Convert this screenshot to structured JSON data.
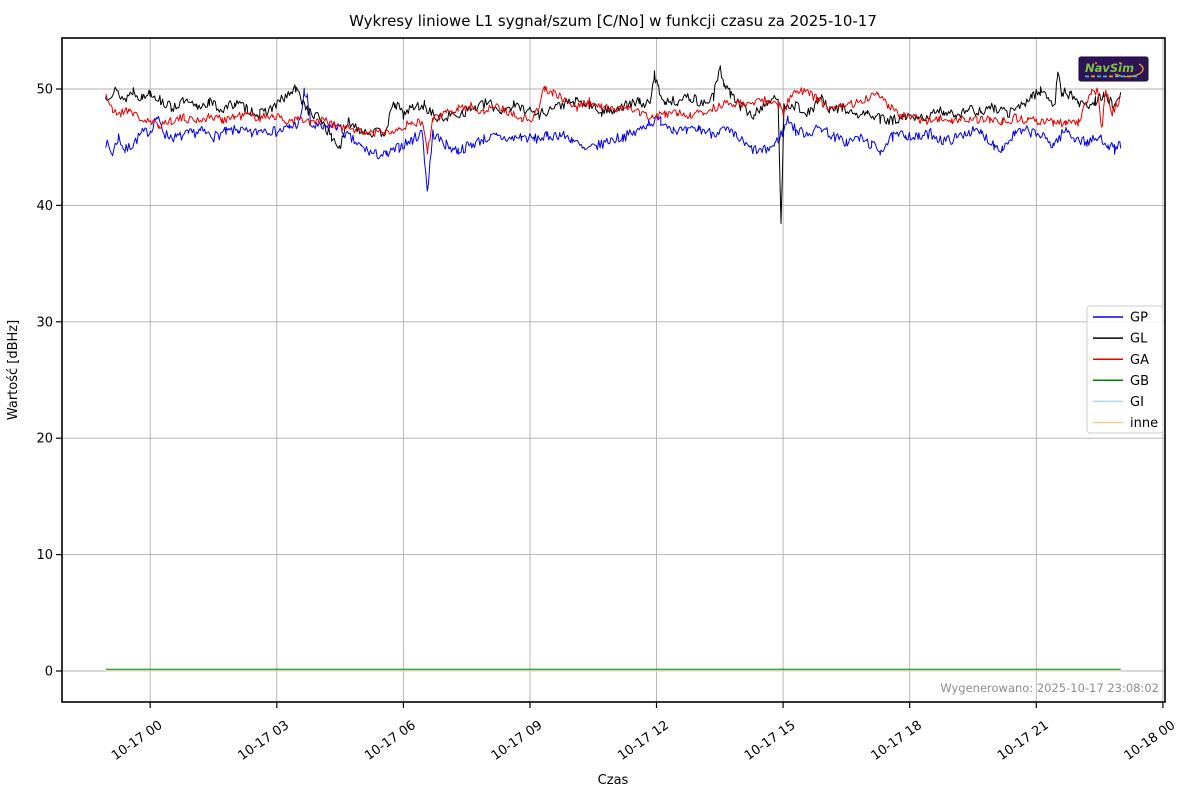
{
  "page": {
    "background": "#ffffff"
  },
  "footer": {
    "generated_text": "Wygenerowano: 2025-10-17 23:08:02"
  },
  "logo": {
    "text": "NavSim",
    "bg_color": "#2e1457",
    "text_color": "#7dc142",
    "swoosh_color": "#e8a01c"
  },
  "chart_data": {
    "type": "line",
    "title": "Wykresy liniowe L1 sygnał/szum [C/No] w funkcji czasu za 2025-10-17",
    "xlabel": "Czas",
    "ylabel": "Wartość [dBHz]",
    "grid": true,
    "legend_position": "center-right",
    "xlim": [
      -2.09,
      24.05
    ],
    "ylim": [
      -2.66,
      54.38
    ],
    "sample_step": 0.032,
    "x_ticks": [
      {
        "h": 0,
        "label": "10-17 00"
      },
      {
        "h": 3,
        "label": "10-17 03"
      },
      {
        "h": 6,
        "label": "10-17 06"
      },
      {
        "h": 9,
        "label": "10-17 09"
      },
      {
        "h": 12,
        "label": "10-17 12"
      },
      {
        "h": 15,
        "label": "10-17 15"
      },
      {
        "h": 18,
        "label": "10-17 18"
      },
      {
        "h": 21,
        "label": "10-17 21"
      },
      {
        "h": 24,
        "label": "10-18 00"
      }
    ],
    "y_ticks": [
      0,
      10,
      20,
      30,
      40,
      50
    ],
    "series": [
      {
        "name": "GP",
        "color": "#0000e6",
        "width": 1,
        "noise": 0.45,
        "seed": 7,
        "anchors": [
          [
            -1.05,
            45.4
          ],
          [
            -0.9,
            44.4
          ],
          [
            -0.75,
            45.9
          ],
          [
            -0.6,
            44.7
          ],
          [
            -0.4,
            45.3
          ],
          [
            -0.2,
            46.2
          ],
          [
            0.0,
            46.4
          ],
          [
            0.15,
            47.6
          ],
          [
            0.35,
            46.1
          ],
          [
            0.6,
            45.8
          ],
          [
            0.9,
            46.1
          ],
          [
            1.2,
            46.4
          ],
          [
            1.5,
            45.9
          ],
          [
            1.8,
            46.3
          ],
          [
            2.1,
            46.5
          ],
          [
            2.4,
            46.1
          ],
          [
            2.7,
            46.6
          ],
          [
            3.0,
            46.3
          ],
          [
            3.3,
            46.7
          ],
          [
            3.55,
            47.1
          ],
          [
            3.65,
            49.7
          ],
          [
            3.72,
            49.3
          ],
          [
            3.8,
            46.9
          ],
          [
            4.1,
            46.6
          ],
          [
            4.4,
            46.9
          ],
          [
            4.7,
            45.9
          ],
          [
            5.0,
            45.0
          ],
          [
            5.3,
            44.4
          ],
          [
            5.6,
            44.3
          ],
          [
            5.9,
            45.0
          ],
          [
            6.2,
            45.6
          ],
          [
            6.45,
            46.3
          ],
          [
            6.57,
            41.2
          ],
          [
            6.7,
            46.2
          ],
          [
            7.0,
            45.2
          ],
          [
            7.3,
            44.7
          ],
          [
            7.6,
            45.2
          ],
          [
            7.9,
            45.7
          ],
          [
            8.2,
            45.9
          ],
          [
            8.5,
            45.7
          ],
          [
            8.8,
            45.9
          ],
          [
            9.1,
            45.7
          ],
          [
            9.4,
            45.9
          ],
          [
            9.7,
            46.1
          ],
          [
            10.0,
            45.7
          ],
          [
            10.3,
            44.7
          ],
          [
            10.6,
            45.1
          ],
          [
            10.9,
            45.6
          ],
          [
            11.2,
            45.9
          ],
          [
            11.5,
            46.2
          ],
          [
            11.8,
            47.1
          ],
          [
            12.1,
            47.3
          ],
          [
            12.4,
            46.6
          ],
          [
            12.7,
            46.3
          ],
          [
            13.0,
            46.6
          ],
          [
            13.3,
            46.2
          ],
          [
            13.6,
            46.5
          ],
          [
            13.9,
            45.9
          ],
          [
            14.2,
            44.9
          ],
          [
            14.5,
            44.6
          ],
          [
            14.8,
            45.2
          ],
          [
            15.0,
            46.4
          ],
          [
            15.12,
            47.5
          ],
          [
            15.3,
            46.4
          ],
          [
            15.6,
            46.2
          ],
          [
            15.9,
            46.7
          ],
          [
            16.2,
            45.9
          ],
          [
            16.5,
            45.4
          ],
          [
            16.8,
            45.8
          ],
          [
            17.1,
            45.2
          ],
          [
            17.3,
            44.7
          ],
          [
            17.6,
            45.9
          ],
          [
            17.9,
            46.1
          ],
          [
            18.2,
            45.8
          ],
          [
            18.5,
            46.2
          ],
          [
            18.8,
            45.5
          ],
          [
            19.1,
            45.8
          ],
          [
            19.4,
            46.4
          ],
          [
            19.7,
            46.2
          ],
          [
            20.0,
            45.2
          ],
          [
            20.2,
            44.9
          ],
          [
            20.5,
            46.2
          ],
          [
            20.8,
            46.4
          ],
          [
            21.1,
            46.0
          ],
          [
            21.4,
            45.2
          ],
          [
            21.7,
            46.5
          ],
          [
            21.9,
            45.8
          ],
          [
            22.2,
            45.4
          ],
          [
            22.5,
            45.8
          ],
          [
            22.7,
            45.3
          ],
          [
            22.85,
            44.8
          ],
          [
            23.0,
            45.3
          ]
        ]
      },
      {
        "name": "GL",
        "color": "#000000",
        "width": 1,
        "noise": 0.45,
        "seed": 13,
        "anchors": [
          [
            -1.05,
            49.3
          ],
          [
            -0.85,
            49.9
          ],
          [
            -0.6,
            49.1
          ],
          [
            -0.4,
            49.9
          ],
          [
            -0.2,
            49.2
          ],
          [
            0.0,
            49.8
          ],
          [
            0.25,
            49.0
          ],
          [
            0.5,
            48.4
          ],
          [
            0.8,
            48.9
          ],
          [
            1.1,
            48.4
          ],
          [
            1.4,
            48.9
          ],
          [
            1.7,
            48.2
          ],
          [
            2.0,
            48.8
          ],
          [
            2.3,
            48.3
          ],
          [
            2.6,
            47.8
          ],
          [
            2.9,
            48.4
          ],
          [
            3.2,
            49.3
          ],
          [
            3.45,
            50.0
          ],
          [
            3.6,
            49.0
          ],
          [
            3.8,
            47.9
          ],
          [
            4.05,
            47.4
          ],
          [
            4.3,
            45.8
          ],
          [
            4.5,
            45.0
          ],
          [
            4.7,
            47.2
          ],
          [
            5.0,
            46.5
          ],
          [
            5.3,
            46.2
          ],
          [
            5.55,
            46.3
          ],
          [
            5.8,
            48.8
          ],
          [
            6.0,
            47.8
          ],
          [
            6.2,
            48.4
          ],
          [
            6.5,
            48.6
          ],
          [
            6.8,
            47.4
          ],
          [
            7.1,
            47.7
          ],
          [
            7.4,
            48.0
          ],
          [
            7.7,
            48.4
          ],
          [
            8.0,
            48.8
          ],
          [
            8.3,
            48.1
          ],
          [
            8.6,
            48.6
          ],
          [
            8.9,
            48.3
          ],
          [
            9.2,
            47.8
          ],
          [
            9.5,
            48.3
          ],
          [
            9.8,
            48.7
          ],
          [
            10.1,
            48.9
          ],
          [
            10.4,
            48.6
          ],
          [
            10.7,
            48.0
          ],
          [
            11.0,
            48.3
          ],
          [
            11.3,
            48.6
          ],
          [
            11.6,
            48.9
          ],
          [
            11.85,
            48.6
          ],
          [
            11.95,
            51.3
          ],
          [
            12.05,
            50.0
          ],
          [
            12.2,
            48.9
          ],
          [
            12.5,
            49.0
          ],
          [
            12.8,
            49.3
          ],
          [
            13.1,
            48.7
          ],
          [
            13.35,
            49.4
          ],
          [
            13.5,
            51.7
          ],
          [
            13.6,
            50.6
          ],
          [
            13.75,
            49.6
          ],
          [
            14.0,
            48.5
          ],
          [
            14.3,
            47.7
          ],
          [
            14.6,
            48.9
          ],
          [
            14.88,
            49.1
          ],
          [
            14.95,
            38.2
          ],
          [
            15.02,
            48.7
          ],
          [
            15.3,
            48.6
          ],
          [
            15.6,
            47.9
          ],
          [
            15.9,
            49.3
          ],
          [
            16.1,
            48.0
          ],
          [
            16.4,
            48.5
          ],
          [
            16.7,
            47.7
          ],
          [
            17.0,
            47.9
          ],
          [
            17.3,
            47.4
          ],
          [
            17.6,
            47.3
          ],
          [
            17.9,
            47.5
          ],
          [
            18.2,
            47.4
          ],
          [
            18.5,
            47.8
          ],
          [
            18.8,
            48.1
          ],
          [
            19.1,
            47.8
          ],
          [
            19.4,
            48.3
          ],
          [
            19.7,
            48.0
          ],
          [
            20.0,
            48.4
          ],
          [
            20.3,
            47.9
          ],
          [
            20.6,
            48.4
          ],
          [
            20.9,
            49.4
          ],
          [
            21.1,
            49.9
          ],
          [
            21.3,
            49.2
          ],
          [
            21.45,
            48.7
          ],
          [
            21.5,
            51.2
          ],
          [
            21.6,
            49.8
          ],
          [
            21.8,
            49.5
          ],
          [
            22.0,
            48.9
          ],
          [
            22.2,
            48.5
          ],
          [
            22.4,
            49.0
          ],
          [
            22.6,
            49.4
          ],
          [
            22.8,
            48.7
          ],
          [
            23.0,
            49.6
          ]
        ]
      },
      {
        "name": "GA",
        "color": "#e60000",
        "width": 1,
        "noise": 0.38,
        "seed": 21,
        "anchors": [
          [
            -1.05,
            49.6
          ],
          [
            -0.9,
            48.1
          ],
          [
            -0.7,
            47.9
          ],
          [
            -0.5,
            48.3
          ],
          [
            -0.3,
            47.6
          ],
          [
            -0.1,
            47.2
          ],
          [
            0.2,
            46.9
          ],
          [
            0.5,
            47.3
          ],
          [
            0.8,
            47.5
          ],
          [
            1.1,
            47.3
          ],
          [
            1.4,
            47.6
          ],
          [
            1.7,
            47.4
          ],
          [
            2.0,
            47.6
          ],
          [
            2.3,
            47.8
          ],
          [
            2.6,
            47.5
          ],
          [
            2.9,
            47.8
          ],
          [
            3.2,
            47.2
          ],
          [
            3.5,
            47.4
          ],
          [
            3.8,
            47.1
          ],
          [
            4.1,
            47.3
          ],
          [
            4.4,
            46.8
          ],
          [
            4.7,
            46.6
          ],
          [
            5.0,
            46.4
          ],
          [
            5.3,
            46.2
          ],
          [
            5.6,
            46.4
          ],
          [
            5.9,
            46.7
          ],
          [
            6.2,
            47.0
          ],
          [
            6.45,
            47.2
          ],
          [
            6.57,
            44.6
          ],
          [
            6.7,
            47.3
          ],
          [
            7.0,
            48.0
          ],
          [
            7.3,
            48.4
          ],
          [
            7.6,
            48.5
          ],
          [
            7.9,
            48.1
          ],
          [
            8.2,
            48.6
          ],
          [
            8.5,
            48.0
          ],
          [
            8.8,
            47.5
          ],
          [
            9.1,
            47.5
          ],
          [
            9.35,
            50.1
          ],
          [
            9.55,
            49.6
          ],
          [
            9.8,
            49.1
          ],
          [
            10.1,
            48.4
          ],
          [
            10.4,
            48.9
          ],
          [
            10.7,
            48.4
          ],
          [
            11.0,
            48.2
          ],
          [
            11.3,
            48.6
          ],
          [
            11.6,
            47.9
          ],
          [
            11.9,
            47.6
          ],
          [
            12.2,
            47.8
          ],
          [
            12.5,
            48.0
          ],
          [
            12.8,
            47.7
          ],
          [
            13.1,
            48.0
          ],
          [
            13.4,
            48.4
          ],
          [
            13.7,
            48.8
          ],
          [
            14.0,
            48.7
          ],
          [
            14.3,
            48.9
          ],
          [
            14.6,
            49.0
          ],
          [
            14.9,
            48.6
          ],
          [
            15.0,
            47.9
          ],
          [
            15.2,
            49.6
          ],
          [
            15.5,
            49.9
          ],
          [
            15.8,
            49.2
          ],
          [
            16.1,
            48.2
          ],
          [
            16.4,
            48.5
          ],
          [
            16.7,
            48.8
          ],
          [
            17.0,
            49.2
          ],
          [
            17.25,
            49.8
          ],
          [
            17.5,
            48.6
          ],
          [
            17.8,
            47.7
          ],
          [
            18.1,
            47.5
          ],
          [
            18.4,
            47.3
          ],
          [
            18.7,
            47.5
          ],
          [
            19.0,
            47.2
          ],
          [
            19.3,
            47.4
          ],
          [
            19.6,
            47.3
          ],
          [
            19.9,
            47.4
          ],
          [
            20.2,
            47.2
          ],
          [
            20.5,
            47.5
          ],
          [
            20.8,
            47.2
          ],
          [
            21.1,
            47.3
          ],
          [
            21.4,
            47.1
          ],
          [
            21.7,
            47.0
          ],
          [
            22.0,
            47.2
          ],
          [
            22.3,
            49.7
          ],
          [
            22.45,
            49.9
          ],
          [
            22.55,
            46.4
          ],
          [
            22.65,
            49.9
          ],
          [
            22.8,
            47.9
          ],
          [
            23.0,
            49.3
          ]
        ]
      },
      {
        "name": "GB",
        "color": "#008000",
        "width": 1,
        "noise": 0,
        "seed": 1,
        "anchors": [
          [
            -1.05,
            0.15
          ],
          [
            23.0,
            0.15
          ]
        ]
      },
      {
        "name": "GI",
        "color": "#add8e6",
        "width": 1,
        "noise": 0,
        "seed": 2,
        "anchors": [
          [
            -1.05,
            0.05
          ],
          [
            23.0,
            0.05
          ]
        ]
      },
      {
        "name": "inne",
        "color": "#f0cf9a",
        "width": 1,
        "noise": 0,
        "seed": 3,
        "anchors": [
          [
            -1.05,
            0.0
          ],
          [
            23.0,
            0.0
          ]
        ]
      }
    ]
  }
}
